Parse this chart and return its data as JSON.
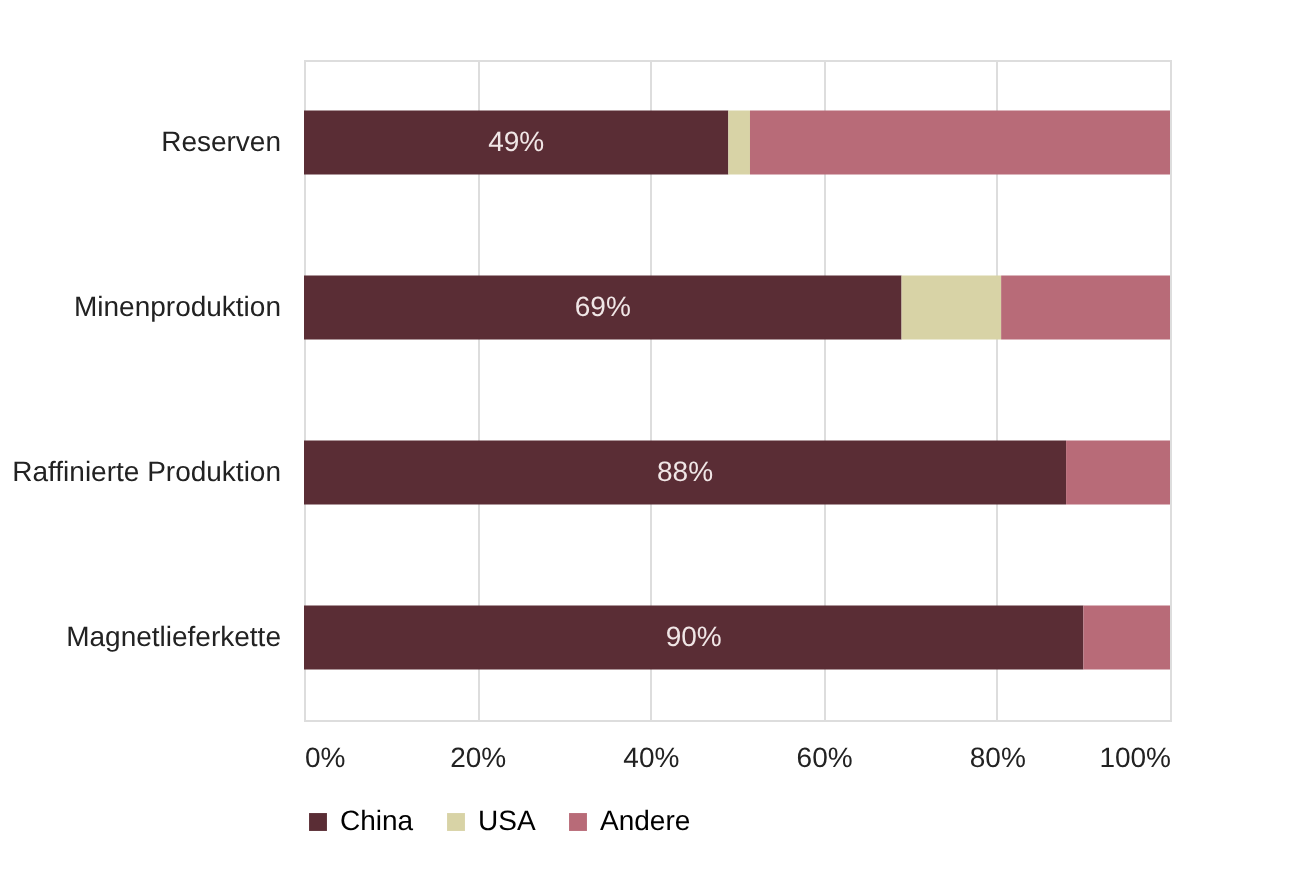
{
  "chart_data": {
    "type": "bar",
    "orientation": "horizontal",
    "stacked": true,
    "categories": [
      "Reserven",
      "Minenproduktion",
      "Raffinierte Produktion",
      "Magnetlieferkette"
    ],
    "series": [
      {
        "name": "China",
        "color": "#5a2d35",
        "values": [
          49,
          69,
          88,
          90
        ],
        "value_labels": [
          "49%",
          "69%",
          "88%",
          "90%"
        ]
      },
      {
        "name": "USA",
        "color": "#d8d3a6",
        "values": [
          2.5,
          11.5,
          0,
          0
        ]
      },
      {
        "name": "Andere",
        "color": "#b86b78",
        "values": [
          48.5,
          19.5,
          12,
          10
        ]
      }
    ],
    "xlim": [
      0,
      100
    ],
    "xticks": [
      {
        "value": 0,
        "label": "0%"
      },
      {
        "value": 20,
        "label": "20%"
      },
      {
        "value": 40,
        "label": "40%"
      },
      {
        "value": 60,
        "label": "60%"
      },
      {
        "value": 80,
        "label": "80%"
      },
      {
        "value": 100,
        "label": "100%"
      }
    ],
    "grid": "x",
    "legend": "bottom"
  }
}
